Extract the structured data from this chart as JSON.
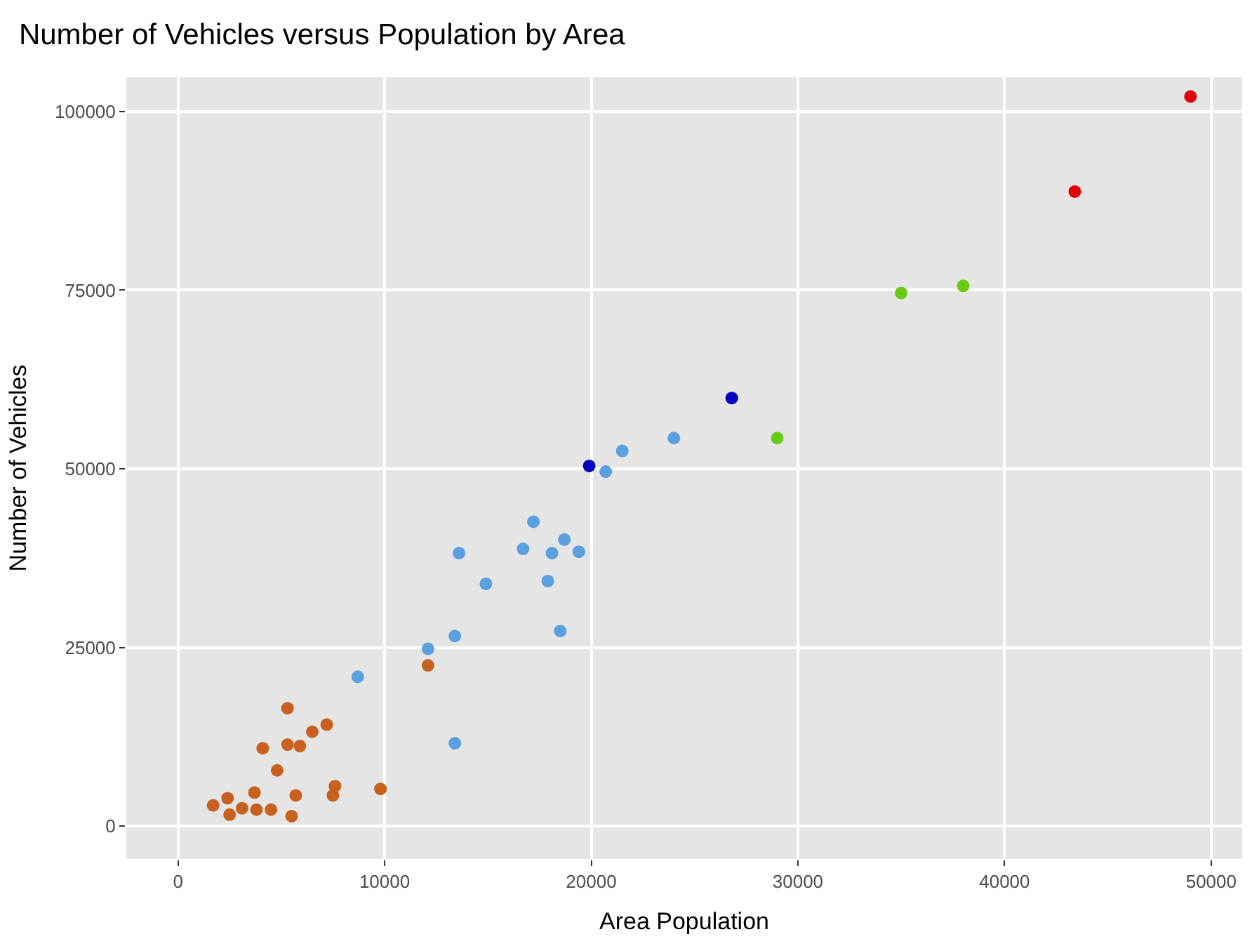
{
  "chart_data": {
    "type": "scatter",
    "title": "Number of Vehicles versus Population by Area",
    "xlabel": "Area Population",
    "ylabel": "Number of Vehicles",
    "series": [
      {
        "color": "#c8601f",
        "x": [
          1700,
          2400,
          2500,
          3100,
          3700,
          3800,
          4500,
          4100,
          4800,
          5300,
          5300,
          5900,
          5500,
          5700,
          6500,
          7200,
          7600,
          7500,
          9800,
          12100
        ],
        "values": [
          2900,
          3900,
          1600,
          2500,
          4700,
          2300,
          2300,
          10900,
          7800,
          16500,
          11400,
          11200,
          1400,
          4300,
          13200,
          14200,
          5600,
          4300,
          5200,
          22500
        ]
      },
      {
        "color": "#5a9fe0",
        "x": [
          8700,
          12100,
          13400,
          13400,
          13600,
          14900,
          16700,
          17200,
          18100,
          18700,
          19400,
          17900,
          18500,
          20700,
          21500,
          24000
        ],
        "values": [
          20900,
          24800,
          26600,
          11600,
          38200,
          33900,
          38800,
          42600,
          38200,
          40100,
          38400,
          34300,
          27300,
          49600,
          52500,
          54300
        ]
      },
      {
        "color": "#0000c0",
        "x": [
          19900,
          26800
        ],
        "values": [
          50400,
          59900
        ]
      },
      {
        "color": "#66cc11",
        "x": [
          29000,
          35000,
          38000
        ],
        "values": [
          54300,
          74600,
          75600
        ]
      },
      {
        "color": "#e00000",
        "x": [
          43400,
          49000
        ],
        "values": [
          88800,
          102100
        ]
      }
    ],
    "xlim": [
      -2500,
      51500
    ],
    "ylim": [
      -4600,
      104800
    ],
    "xticks": [
      0,
      10000,
      20000,
      30000,
      40000,
      50000
    ],
    "yticks": [
      0,
      25000,
      50000,
      75000,
      100000
    ],
    "grid": true,
    "marker": "circle"
  }
}
